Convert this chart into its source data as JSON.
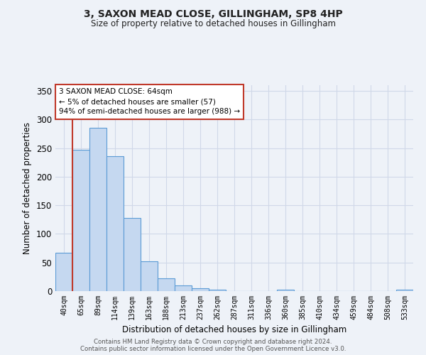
{
  "title1": "3, SAXON MEAD CLOSE, GILLINGHAM, SP8 4HP",
  "title2": "Size of property relative to detached houses in Gillingham",
  "xlabel": "Distribution of detached houses by size in Gillingham",
  "ylabel": "Number of detached properties",
  "categories": [
    "40sqm",
    "65sqm",
    "89sqm",
    "114sqm",
    "139sqm",
    "163sqm",
    "188sqm",
    "213sqm",
    "237sqm",
    "262sqm",
    "287sqm",
    "311sqm",
    "336sqm",
    "360sqm",
    "385sqm",
    "410sqm",
    "434sqm",
    "459sqm",
    "484sqm",
    "508sqm",
    "533sqm"
  ],
  "values": [
    67,
    247,
    285,
    236,
    128,
    52,
    22,
    10,
    5,
    3,
    0,
    0,
    0,
    3,
    0,
    0,
    0,
    0,
    0,
    0,
    2
  ],
  "bar_color": "#c5d8f0",
  "bar_edge_color": "#5b9bd5",
  "vline_color": "#c0392b",
  "annotation_line1": "3 SAXON MEAD CLOSE: 64sqm",
  "annotation_line2": "← 5% of detached houses are smaller (57)",
  "annotation_line3": "94% of semi-detached houses are larger (988) →",
  "annotation_box_color": "white",
  "annotation_box_edge_color": "#c0392b",
  "ylim": [
    0,
    360
  ],
  "yticks": [
    0,
    50,
    100,
    150,
    200,
    250,
    300,
    350
  ],
  "grid_color": "#d0d8e8",
  "bg_color": "#eef2f8",
  "footnote1": "Contains HM Land Registry data © Crown copyright and database right 2024.",
  "footnote2": "Contains public sector information licensed under the Open Government Licence v3.0."
}
